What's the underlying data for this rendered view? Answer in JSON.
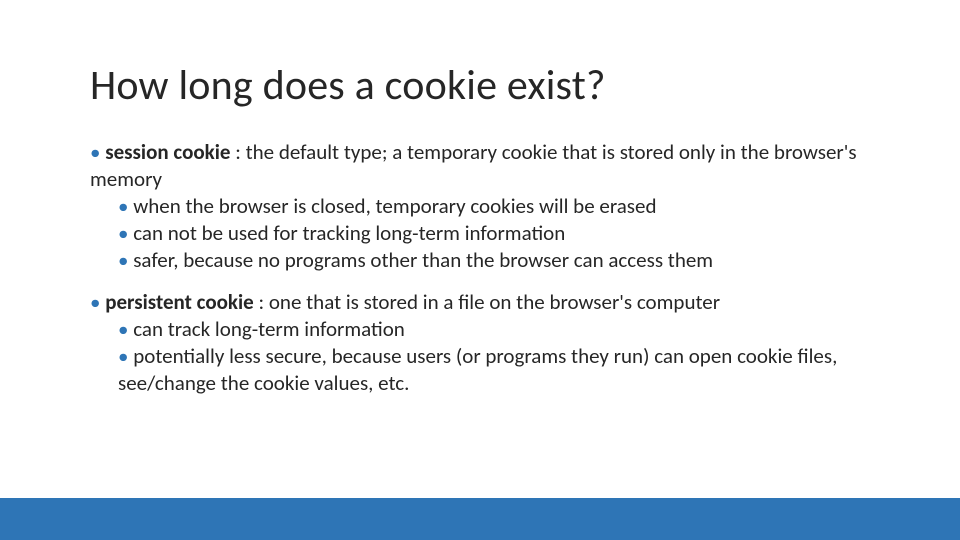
{
  "title": "How long does a cookie exist?",
  "bullet_color": "#2e75b6",
  "text_color": "#262626",
  "title_fontsize": 42,
  "body_fontsize": 21,
  "footer_bar_color": "#2e75b6",
  "background_color": "#ffffff",
  "sections": [
    {
      "term": "session cookie",
      "definition": " : the default type; a temporary cookie that is stored only in the browser's memory",
      "subs": [
        "when the browser is closed, temporary cookies will be erased",
        "can not be used for tracking long-term information",
        "safer, because no programs other than the browser can access them"
      ]
    },
    {
      "term": "persistent cookie",
      "definition": " : one that is stored in a file on the browser's computer",
      "subs": [
        "can track long-term information",
        "potentially less secure, because users (or programs they run) can open cookie files, see/change the cookie values, etc."
      ]
    }
  ]
}
